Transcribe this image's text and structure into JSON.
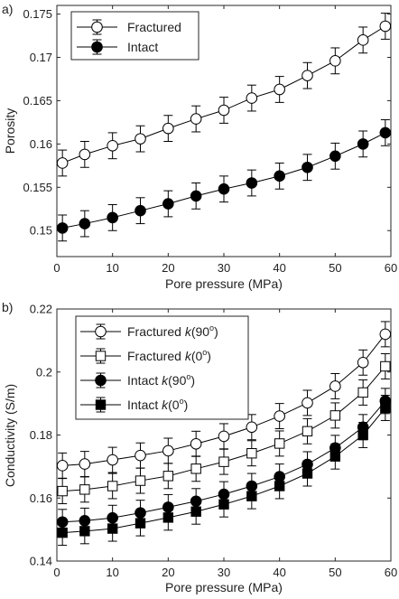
{
  "chart_data": [
    {
      "type": "line",
      "panel_label": "a)",
      "xlabel": "Pore pressure (MPa)",
      "ylabel": "Porosity",
      "xlim": [
        0,
        60
      ],
      "ylim": [
        0.147,
        0.176
      ],
      "xticks": [
        0,
        10,
        20,
        30,
        40,
        50,
        60
      ],
      "xtick_labels": [
        "0",
        "10",
        "20",
        "30",
        "40",
        "50",
        "60"
      ],
      "yticks": [
        0.15,
        0.155,
        0.16,
        0.165,
        0.17,
        0.175
      ],
      "ytick_labels": [
        "0.15",
        "0.155",
        "0.16",
        "0.165",
        "0.17",
        "0.175"
      ],
      "grid": false,
      "legend_position": "top-left",
      "x": [
        1,
        5,
        10,
        15,
        20,
        25,
        30,
        35,
        40,
        45,
        50,
        55,
        59
      ],
      "series": [
        {
          "name": "Fractured",
          "marker": "circle-open",
          "values": [
            0.1578,
            0.1588,
            0.1598,
            0.1606,
            0.1618,
            0.1629,
            0.1639,
            0.1653,
            0.1663,
            0.1679,
            0.1696,
            0.172,
            0.1736
          ],
          "error": 0.0015
        },
        {
          "name": "Intact",
          "marker": "circle-filled",
          "values": [
            0.1503,
            0.1508,
            0.1515,
            0.1523,
            0.1531,
            0.154,
            0.1548,
            0.1555,
            0.1563,
            0.1573,
            0.1586,
            0.16,
            0.1613
          ],
          "error": 0.0015
        }
      ]
    },
    {
      "type": "line",
      "panel_label": "b)",
      "xlabel": "Pore pressure (MPa)",
      "ylabel": "Conductivity (S/m)",
      "xlim": [
        0,
        60
      ],
      "ylim": [
        0.14,
        0.22
      ],
      "xticks": [
        0,
        10,
        20,
        30,
        40,
        50,
        60
      ],
      "xtick_labels": [
        "0",
        "10",
        "20",
        "30",
        "40",
        "50",
        "60"
      ],
      "yticks": [
        0.14,
        0.16,
        0.18,
        0.2,
        0.22
      ],
      "ytick_labels": [
        "0.14",
        "0.16",
        "0.18",
        "0.2",
        "0.22"
      ],
      "grid": false,
      "legend_position": "top-left",
      "x": [
        1,
        5,
        10,
        15,
        20,
        25,
        30,
        35,
        40,
        45,
        50,
        55,
        59
      ],
      "series": [
        {
          "name_prefix": "Fractured",
          "name_k": "k",
          "name_angle": "(90",
          "name_deg": "o",
          "name_close": ")",
          "marker": "circle-open",
          "values": [
            0.1703,
            0.1708,
            0.1721,
            0.1735,
            0.175,
            0.1772,
            0.1796,
            0.1825,
            0.186,
            0.1902,
            0.1955,
            0.203,
            0.212
          ],
          "error": 0.004
        },
        {
          "name_prefix": "Fractured",
          "name_k": "k",
          "name_angle": "(0",
          "name_deg": "o",
          "name_close": ")",
          "marker": "square-open",
          "values": [
            0.1622,
            0.1627,
            0.1638,
            0.1655,
            0.167,
            0.1693,
            0.1715,
            0.1742,
            0.1773,
            0.1812,
            0.1862,
            0.1935,
            0.2018
          ],
          "error": 0.004
        },
        {
          "name_prefix": "Intact",
          "name_k": "k",
          "name_angle": "(90",
          "name_deg": "o",
          "name_close": ")",
          "marker": "circle-filled",
          "values": [
            0.1524,
            0.1528,
            0.1537,
            0.1553,
            0.1571,
            0.159,
            0.1612,
            0.1638,
            0.1668,
            0.1707,
            0.1759,
            0.1825,
            0.1908
          ],
          "error": 0.004
        },
        {
          "name_prefix": "Intact",
          "name_k": "k",
          "name_angle": "(0",
          "name_deg": "o",
          "name_close": ")",
          "marker": "square-filled",
          "values": [
            0.149,
            0.1495,
            0.1503,
            0.152,
            0.1538,
            0.1557,
            0.158,
            0.1606,
            0.1638,
            0.1678,
            0.1732,
            0.18,
            0.1886
          ],
          "error": 0.004
        }
      ]
    }
  ]
}
